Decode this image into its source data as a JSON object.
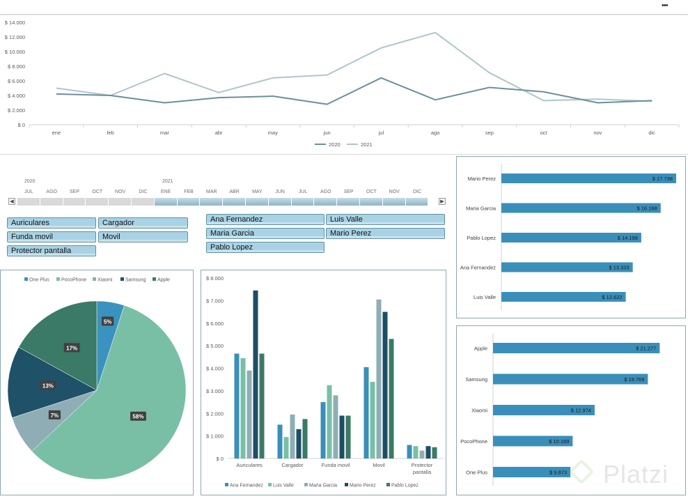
{
  "window": {
    "menu_glyph": "•••"
  },
  "watermark": {
    "text": "Platzi"
  },
  "timeline": {
    "years": [
      "2020",
      "2021"
    ],
    "months": [
      "JUL",
      "AGO",
      "SEP",
      "OCT",
      "NOV",
      "DIC",
      "ENE",
      "FEB",
      "MAR",
      "ABR",
      "MAY",
      "JUN",
      "JUL",
      "AGO",
      "SEP",
      "OCT",
      "NOV",
      "DIC"
    ],
    "selected_from_index": 6,
    "selected_to_index": 17,
    "scroll_left_glyph": "◀",
    "scroll_right_glyph": "▶"
  },
  "slicers": {
    "products": [
      "Auriculares",
      "Cargador",
      "Funda movil",
      "Movil",
      "Protector pantalla"
    ],
    "sellers": [
      "Ana Fernandez",
      "Luis Valle",
      "Maria Garcia",
      "Mario Perez",
      "Pablo Lopez"
    ]
  },
  "colors": {
    "series_2020": "#6b8f9c",
    "series_2021": "#aec6cc",
    "bar_blue": "#3a8fba",
    "one_plus": "#3a92be",
    "poco_phone": "#79bfa6",
    "xiaomi": "#8fadb5",
    "samsung": "#1f5168",
    "apple": "#3a7a66",
    "ana": "#3a8fba",
    "luis": "#79bfa6",
    "maria": "#8fadb5",
    "mario": "#1d4e64",
    "pablo": "#3a7a66"
  },
  "chart_data": [
    {
      "id": "monthly_sales",
      "type": "line",
      "categories": [
        "ene",
        "feb",
        "mar",
        "abr",
        "may",
        "jun",
        "jul",
        "ago",
        "sep",
        "oct",
        "nov",
        "dic"
      ],
      "series": [
        {
          "name": "2020",
          "values": [
            4200,
            4000,
            3000,
            3700,
            3900,
            2800,
            6400,
            3400,
            5100,
            4500,
            3000,
            3300
          ]
        },
        {
          "name": "2021",
          "values": [
            5000,
            4000,
            7000,
            4400,
            6400,
            6800,
            10500,
            12600,
            7100,
            3300,
            3500,
            3200
          ]
        }
      ],
      "ylim": [
        0,
        14000
      ],
      "ytick_labels": [
        "$ 0",
        "$ 2.000",
        "$ 4.000",
        "$ 6.000",
        "$ 8.000",
        "$ 10.000",
        "$ 12.000",
        "$ 14.000"
      ],
      "legend": "bottom"
    },
    {
      "id": "brand_share",
      "type": "pie",
      "labels": [
        "One Plus",
        "PocoPhone",
        "Xiaomi",
        "Samsung",
        "Apple"
      ],
      "values": [
        5,
        58,
        7,
        13,
        17
      ],
      "data_labels": [
        "5%",
        "58%",
        "7%",
        "13%",
        "17%"
      ],
      "legend": "top"
    },
    {
      "id": "product_by_seller",
      "type": "bar",
      "categories": [
        "Auriculares",
        "Cargador",
        "Funda movil",
        "Movil",
        "Protector pantalla"
      ],
      "series": [
        {
          "name": "Ana Fernandez",
          "values": [
            4650,
            1500,
            2500,
            4050,
            600
          ]
        },
        {
          "name": "Luis Valle",
          "values": [
            4450,
            950,
            3250,
            3400,
            550
          ]
        },
        {
          "name": "Maria Garcia",
          "values": [
            3900,
            1950,
            2800,
            7050,
            350
          ]
        },
        {
          "name": "Mario Perez",
          "values": [
            7450,
            1300,
            1900,
            6500,
            550
          ]
        },
        {
          "name": "Pablo Lopez",
          "values": [
            4650,
            1750,
            1900,
            5300,
            500
          ]
        }
      ],
      "ylim": [
        0,
        8000
      ],
      "ytick_labels": [
        "$ 0",
        "$ 1.000",
        "$ 2.000",
        "$ 3.000",
        "$ 4.000",
        "$ 5.000",
        "$ 6.000",
        "$ 7.000",
        "$ 8.000"
      ],
      "legend": "bottom"
    },
    {
      "id": "seller_totals",
      "type": "bar",
      "orientation": "horizontal",
      "categories": [
        "Mario Perez",
        "Maria Garcia",
        "Pablo Lopez",
        "Ana Fernandez",
        "Luis Valle"
      ],
      "values": [
        17738,
        16168,
        14198,
        13333,
        12622
      ],
      "data_labels": [
        "$ 17.738",
        "$ 16.168",
        "$ 14.198",
        "$ 13.333",
        "$ 12.622"
      ],
      "xlim": [
        0,
        20000
      ]
    },
    {
      "id": "brand_totals",
      "type": "bar",
      "orientation": "horizontal",
      "categories": [
        "Apple",
        "Samsung",
        "Xiaomi",
        "PocoPhone",
        "One Plus"
      ],
      "values": [
        21277,
        19769,
        12974,
        10169,
        9873
      ],
      "data_labels": [
        "$ 21.277",
        "$ 19.769",
        "$ 12.974",
        "$ 10.169",
        "$ 9.873"
      ],
      "xlim": [
        0,
        24000
      ]
    }
  ]
}
